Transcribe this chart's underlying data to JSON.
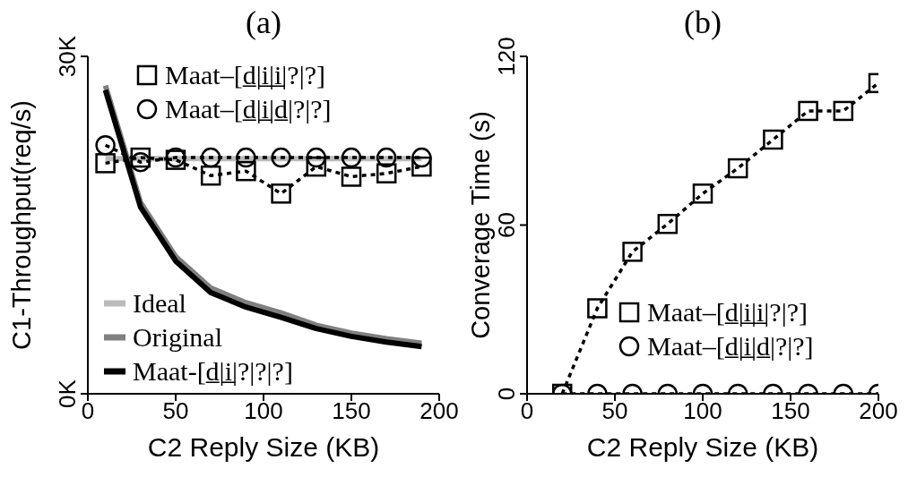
{
  "chart_data": [
    {
      "type": "line",
      "title": "(a)",
      "xlabel": "C2 Reply Size (KB)",
      "ylabel": "C1-Throughput(req/s)",
      "xlim": [
        0,
        200
      ],
      "xticks": [
        0,
        50,
        100,
        150,
        200
      ],
      "ylim": [
        0,
        30
      ],
      "yticks": [
        {
          "value": 0,
          "label": "0K"
        },
        {
          "value": 30,
          "label": "30K"
        }
      ],
      "grid": false,
      "legend": "left",
      "x": [
        10,
        30,
        50,
        70,
        90,
        110,
        130,
        150,
        170,
        190
      ],
      "series": [
        {
          "name": "Maat–[d̲|i̲|i̲|?|?]",
          "color": "#000000",
          "marker": "square",
          "line_style": "dashed",
          "values": [
            20.5,
            21.0,
            20.8,
            19.4,
            19.8,
            17.8,
            20.2,
            19.3,
            19.6,
            20.2
          ]
        },
        {
          "name": "Maat–[d̲|i̲|d̲|?|?]",
          "color": "#000000",
          "marker": "circle",
          "line_style": "dashed",
          "values": [
            22.1,
            20.6,
            21.0,
            21.0,
            21.0,
            21.0,
            21.0,
            21.0,
            21.0,
            21.0
          ]
        },
        {
          "name": "Ideal",
          "color": "#bbbbbb",
          "marker": "none",
          "line_style": "solid",
          "values": [
            20.9,
            20.9,
            20.9,
            20.9,
            20.9,
            20.9,
            20.9,
            20.9,
            20.9,
            20.9
          ]
        },
        {
          "name": "Original",
          "color": "#808080",
          "marker": "none",
          "line_style": "solid",
          "values": [
            27.4,
            17.0,
            12.2,
            9.4,
            8.1,
            7.2,
            6.1,
            5.4,
            4.9,
            4.5
          ]
        },
        {
          "name": "Maat-[d̲|i̲|?|?|?]",
          "color": "#000000",
          "marker": "none",
          "line_style": "solid",
          "values": [
            27.0,
            16.6,
            11.8,
            9.0,
            7.7,
            6.8,
            5.8,
            5.1,
            4.6,
            4.2
          ]
        }
      ]
    },
    {
      "type": "line",
      "title": "(b)",
      "xlabel": "C2 Reply Size (KB)",
      "ylabel": "Converage Time (s)",
      "xlim": [
        0,
        200
      ],
      "xticks": [
        0,
        50,
        100,
        150,
        200
      ],
      "ylim": [
        0,
        120
      ],
      "yticks": [
        0,
        60,
        120
      ],
      "grid": false,
      "legend": "bottom",
      "x": [
        20,
        40,
        60,
        80,
        100,
        120,
        140,
        160,
        180,
        200
      ],
      "series": [
        {
          "name": "Maat–[d̲|i̲|i̲|?|?]",
          "color": "#000000",
          "marker": "square",
          "line_style": "dashed",
          "values": [
            0,
            30.4,
            50.5,
            60.4,
            71.2,
            80.2,
            90.4,
            100.6,
            100.6,
            110.5
          ]
        },
        {
          "name": "Maat–[d̲|i̲|d̲|?|?]",
          "color": "#000000",
          "marker": "circle",
          "line_style": "dashed",
          "values": [
            0,
            0,
            0,
            0,
            0,
            0,
            0,
            0,
            0,
            0
          ]
        }
      ]
    }
  ]
}
